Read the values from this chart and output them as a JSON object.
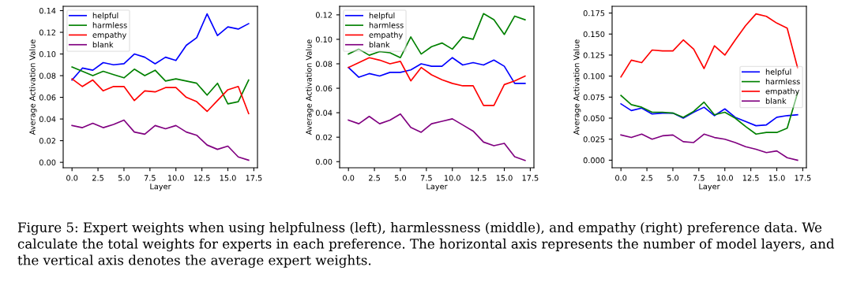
{
  "chart_data": [
    {
      "type": "line",
      "xlabel": "Layer",
      "ylabel": "Average Activation Value",
      "legend": "top left",
      "grid": false,
      "x": [
        0,
        1,
        2,
        3,
        4,
        5,
        6,
        7,
        8,
        9,
        10,
        11,
        12,
        13,
        14,
        15,
        16,
        17
      ],
      "xlim": [
        -0.85,
        17.85
      ],
      "xticks": [
        {
          "value": 0,
          "label": "0.0"
        },
        {
          "value": 2.5,
          "label": "2.5"
        },
        {
          "value": 5,
          "label": "5.0"
        },
        {
          "value": 7.5,
          "label": "7.5"
        },
        {
          "value": 10,
          "label": "10.0"
        },
        {
          "value": 12.5,
          "label": "12.5"
        },
        {
          "value": 15,
          "label": "15.0"
        },
        {
          "value": 17.5,
          "label": "17.5"
        }
      ],
      "ylim": [
        -0.005,
        0.144
      ],
      "yticks": [
        {
          "value": 0,
          "label": "0.00"
        },
        {
          "value": 0.02,
          "label": "0.02"
        },
        {
          "value": 0.04,
          "label": "0.04"
        },
        {
          "value": 0.06,
          "label": "0.06"
        },
        {
          "value": 0.08,
          "label": "0.08"
        },
        {
          "value": 0.1,
          "label": "0.10"
        },
        {
          "value": 0.12,
          "label": "0.12"
        },
        {
          "value": 0.14,
          "label": "0.14"
        }
      ],
      "series": [
        {
          "name": "helpful",
          "color": "#0000ff",
          "values": [
            0.076,
            0.087,
            0.085,
            0.092,
            0.09,
            0.091,
            0.1,
            0.097,
            0.091,
            0.097,
            0.094,
            0.108,
            0.115,
            0.137,
            0.117,
            0.125,
            0.123,
            0.128
          ]
        },
        {
          "name": "harmless",
          "color": "#008000",
          "values": [
            0.088,
            0.084,
            0.08,
            0.084,
            0.081,
            0.078,
            0.086,
            0.08,
            0.085,
            0.075,
            0.077,
            0.075,
            0.073,
            0.062,
            0.073,
            0.054,
            0.056,
            0.076
          ]
        },
        {
          "name": "empathy",
          "color": "#ff0000",
          "values": [
            0.077,
            0.07,
            0.076,
            0.066,
            0.07,
            0.07,
            0.057,
            0.066,
            0.065,
            0.069,
            0.069,
            0.06,
            0.056,
            0.047,
            0.057,
            0.067,
            0.07,
            0.045
          ]
        },
        {
          "name": "blank",
          "color": "#800080",
          "values": [
            0.034,
            0.032,
            0.036,
            0.032,
            0.035,
            0.039,
            0.028,
            0.026,
            0.034,
            0.031,
            0.034,
            0.028,
            0.025,
            0.016,
            0.012,
            0.015,
            0.005,
            0.002
          ]
        }
      ],
      "annotations": [
        "Figure 5: Expert weights when using helpfulness (left), harmlessness (middle), and empathy (right) preference data. We calculate the total weights for experts in each preference. The horizontal axis represents the number of model layers, and the vertical axis denotes the average expert weights."
      ]
    },
    {
      "type": "line",
      "xlabel": "Layer",
      "ylabel": "Average Activation Value",
      "legend": "top left",
      "grid": false,
      "x": [
        0,
        1,
        2,
        3,
        4,
        5,
        6,
        7,
        8,
        9,
        10,
        11,
        12,
        13,
        14,
        15,
        16,
        17
      ],
      "xlim": [
        -0.85,
        17.85
      ],
      "xticks": [
        {
          "value": 0,
          "label": "0.0"
        },
        {
          "value": 2.5,
          "label": "2.5"
        },
        {
          "value": 5,
          "label": "5.0"
        },
        {
          "value": 7.5,
          "label": "7.5"
        },
        {
          "value": 10,
          "label": "10.0"
        },
        {
          "value": 12.5,
          "label": "12.5"
        },
        {
          "value": 15,
          "label": "15.0"
        },
        {
          "value": 17.5,
          "label": "17.5"
        }
      ],
      "ylim": [
        -0.005,
        0.127
      ],
      "yticks": [
        {
          "value": 0,
          "label": "0.00"
        },
        {
          "value": 0.02,
          "label": "0.02"
        },
        {
          "value": 0.04,
          "label": "0.04"
        },
        {
          "value": 0.06,
          "label": "0.06"
        },
        {
          "value": 0.08,
          "label": "0.08"
        },
        {
          "value": 0.1,
          "label": "0.10"
        },
        {
          "value": 0.12,
          "label": "0.12"
        }
      ],
      "series": [
        {
          "name": "helpful",
          "color": "#0000ff",
          "values": [
            0.077,
            0.069,
            0.072,
            0.07,
            0.073,
            0.073,
            0.075,
            0.08,
            0.078,
            0.078,
            0.085,
            0.079,
            0.081,
            0.079,
            0.083,
            0.078,
            0.064,
            0.064
          ]
        },
        {
          "name": "harmless",
          "color": "#008000",
          "values": [
            0.088,
            0.092,
            0.087,
            0.09,
            0.089,
            0.085,
            0.102,
            0.088,
            0.094,
            0.097,
            0.092,
            0.102,
            0.1,
            0.121,
            0.116,
            0.104,
            0.119,
            0.116
          ]
        },
        {
          "name": "empathy",
          "color": "#ff0000",
          "values": [
            0.077,
            0.081,
            0.085,
            0.083,
            0.08,
            0.082,
            0.066,
            0.077,
            0.071,
            0.067,
            0.064,
            0.062,
            0.062,
            0.046,
            0.046,
            0.063,
            0.066,
            0.07
          ]
        },
        {
          "name": "blank",
          "color": "#800080",
          "values": [
            0.034,
            0.031,
            0.037,
            0.031,
            0.034,
            0.039,
            0.028,
            0.024,
            0.031,
            0.033,
            0.035,
            0.03,
            0.025,
            0.016,
            0.013,
            0.015,
            0.004,
            0.001
          ]
        }
      ]
    },
    {
      "type": "line",
      "xlabel": "Layer",
      "ylabel": "Average Activation Value",
      "legend": "right",
      "grid": false,
      "x": [
        0,
        1,
        2,
        3,
        4,
        5,
        6,
        7,
        8,
        9,
        10,
        11,
        12,
        13,
        14,
        15,
        16,
        17
      ],
      "xlim": [
        -0.85,
        17.85
      ],
      "xticks": [
        {
          "value": 0,
          "label": "0.0"
        },
        {
          "value": 2.5,
          "label": "2.5"
        },
        {
          "value": 5,
          "label": "5.0"
        },
        {
          "value": 7.5,
          "label": "7.5"
        },
        {
          "value": 10,
          "label": "10.0"
        },
        {
          "value": 12.5,
          "label": "12.5"
        },
        {
          "value": 15,
          "label": "15.0"
        },
        {
          "value": 17.5,
          "label": "17.5"
        }
      ],
      "ylim": [
        -0.009,
        0.183
      ],
      "yticks": [
        {
          "value": 0,
          "label": "0.000"
        },
        {
          "value": 0.025,
          "label": "0.025"
        },
        {
          "value": 0.05,
          "label": "0.050"
        },
        {
          "value": 0.075,
          "label": "0.075"
        },
        {
          "value": 0.1,
          "label": "0.100"
        },
        {
          "value": 0.125,
          "label": "0.125"
        },
        {
          "value": 0.15,
          "label": "0.150"
        },
        {
          "value": 0.175,
          "label": "0.175"
        }
      ],
      "series": [
        {
          "name": "helpful",
          "color": "#0000ff",
          "values": [
            0.067,
            0.059,
            0.062,
            0.055,
            0.056,
            0.056,
            0.05,
            0.057,
            0.063,
            0.053,
            0.061,
            0.051,
            0.046,
            0.041,
            0.042,
            0.051,
            0.053,
            0.054
          ]
        },
        {
          "name": "harmless",
          "color": "#008000",
          "values": [
            0.077,
            0.066,
            0.063,
            0.057,
            0.057,
            0.056,
            0.051,
            0.058,
            0.069,
            0.054,
            0.057,
            0.05,
            0.04,
            0.031,
            0.033,
            0.033,
            0.038,
            0.08
          ]
        },
        {
          "name": "empathy",
          "color": "#ff0000",
          "values": [
            0.099,
            0.119,
            0.116,
            0.131,
            0.13,
            0.13,
            0.143,
            0.132,
            0.109,
            0.136,
            0.125,
            0.143,
            0.16,
            0.174,
            0.171,
            0.163,
            0.157,
            0.11
          ]
        },
        {
          "name": "blank",
          "color": "#800080",
          "values": [
            0.03,
            0.027,
            0.031,
            0.025,
            0.029,
            0.03,
            0.022,
            0.021,
            0.031,
            0.027,
            0.025,
            0.021,
            0.016,
            0.013,
            0.009,
            0.011,
            0.003,
            0.0
          ]
        }
      ]
    }
  ]
}
